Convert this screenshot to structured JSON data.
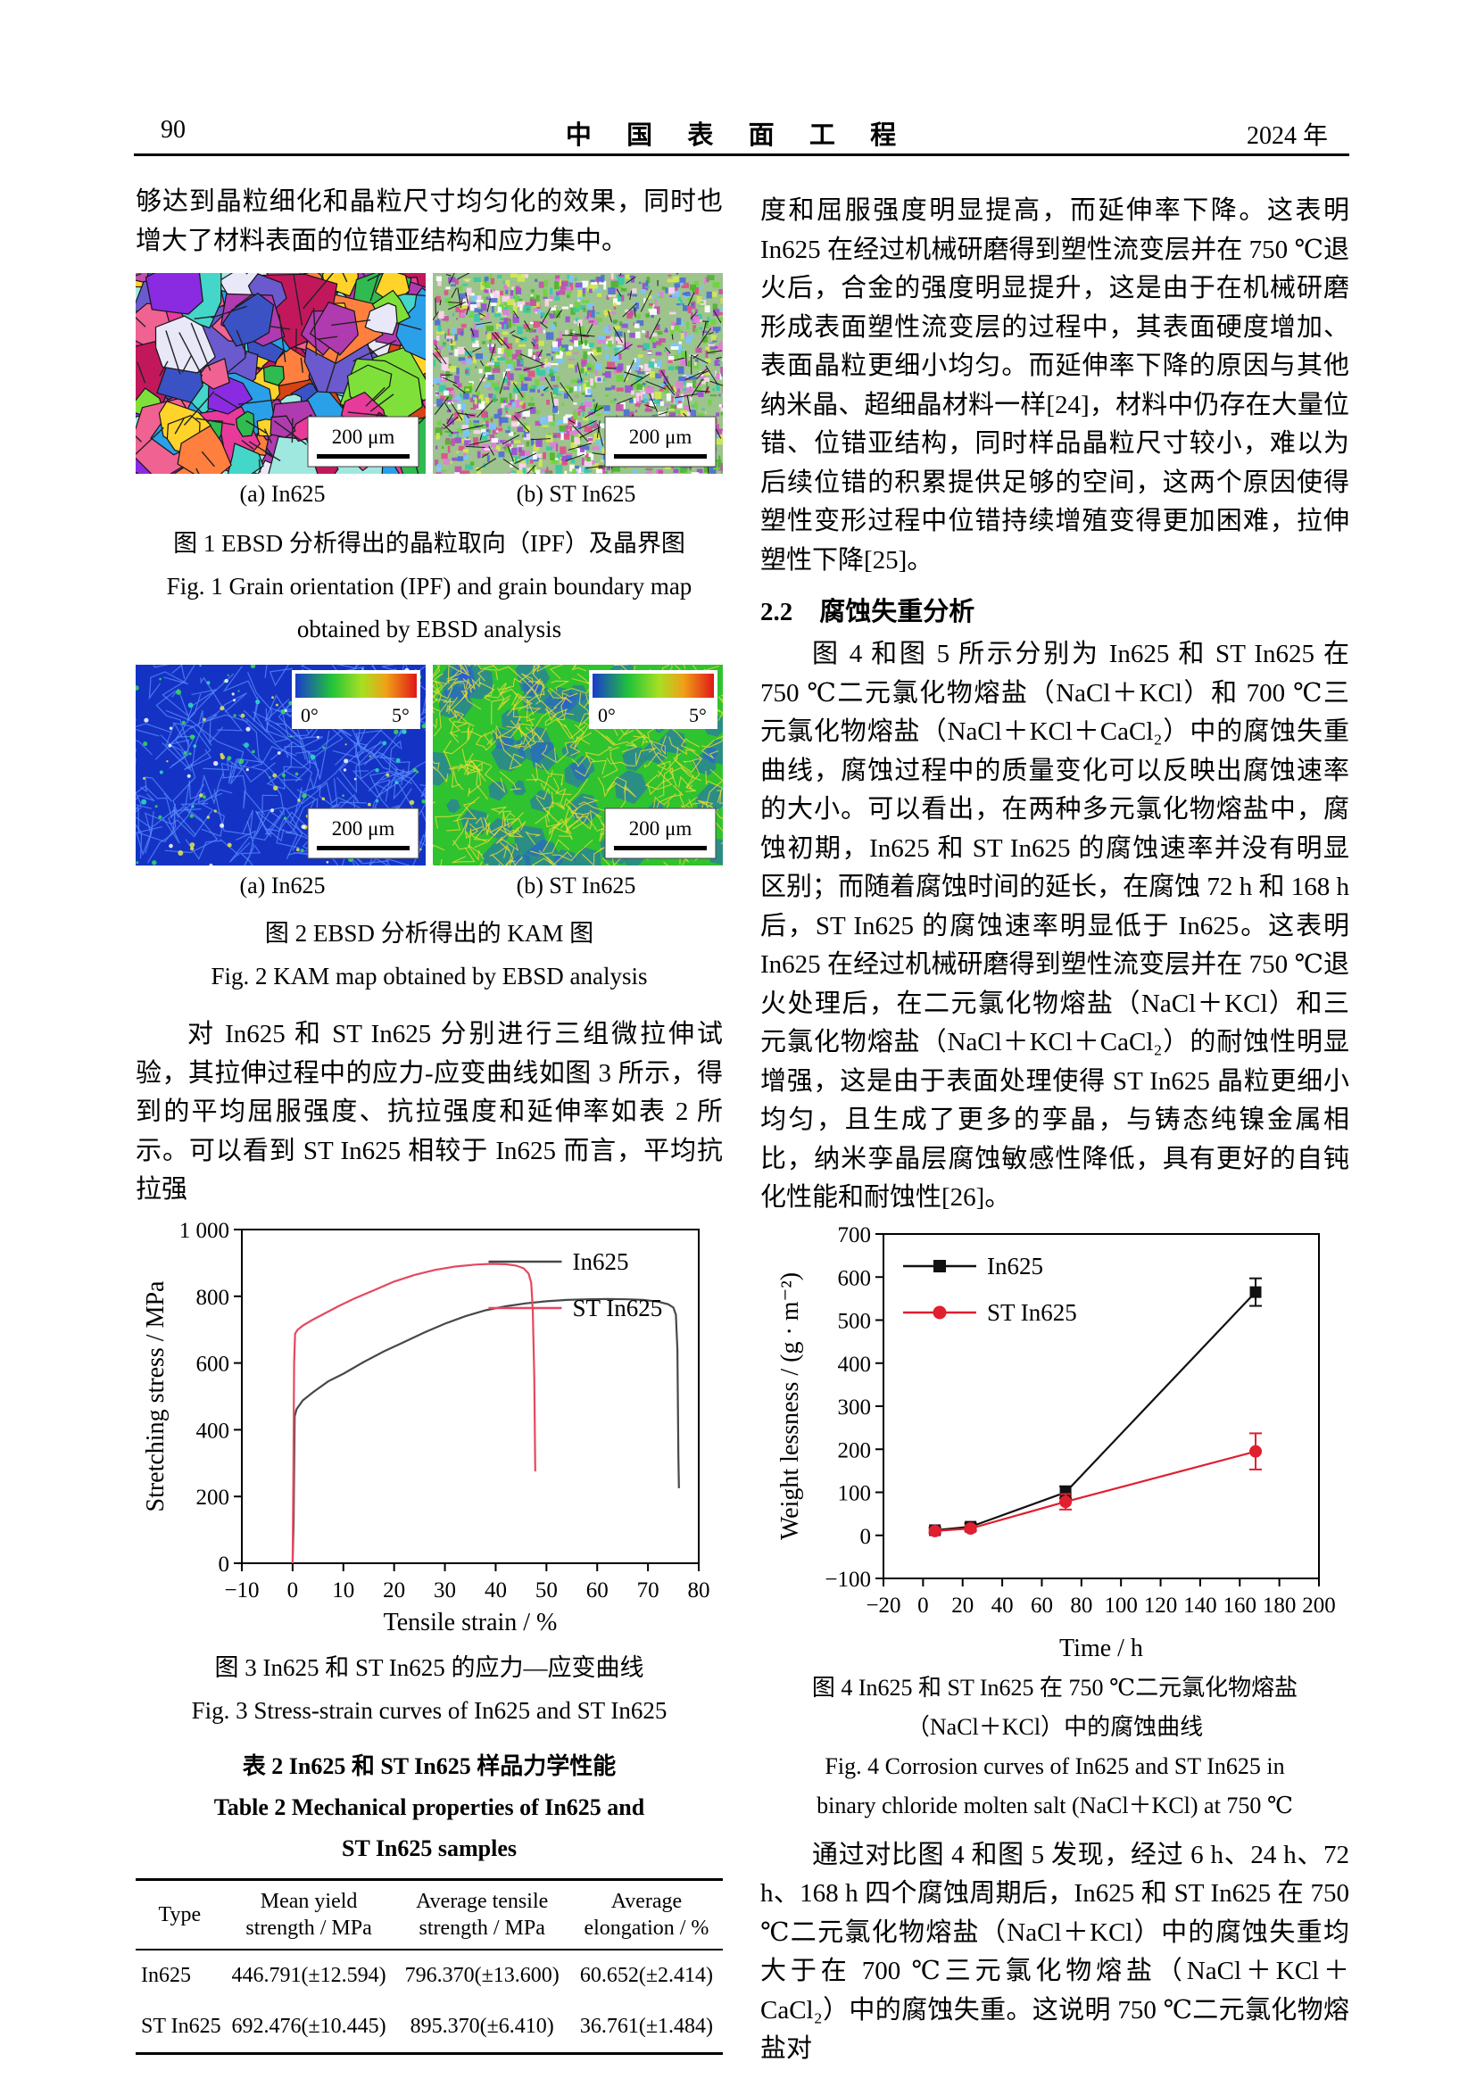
{
  "header": {
    "page_number": "90",
    "journal_title": "中 国 表 面 工 程",
    "year": "2024 年"
  },
  "left_column": {
    "para_intro": "够达到晶粒细化和晶粒尺寸均匀化的效果，同时也增大了材料表面的位错亚结构和应力集中。",
    "figure1": {
      "label_a": "(a) In625",
      "label_b": "(b) ST In625",
      "scale_bar": "200 μm",
      "caption_cn": "图 1  EBSD 分析得出的晶粒取向（IPF）及晶界图",
      "caption_en_line1": "Fig. 1  Grain orientation (IPF) and grain boundary map",
      "caption_en_line2": "obtained by EBSD analysis"
    },
    "figure2": {
      "label_a": "(a) In625",
      "label_b": "(b) ST In625",
      "scale_bar": "200 μm",
      "colorbar_min": "0°",
      "colorbar_max": "5°",
      "caption_cn": "图 2  EBSD 分析得出的 KAM 图",
      "caption_en": "Fig. 2  KAM map obtained by EBSD analysis"
    },
    "para_tensile": "对 In625 和 ST In625 分别进行三组微拉伸试验，其拉伸过程中的应力-应变曲线如图 3 所示，得到的平均屈服强度、抗拉强度和延伸率如表 2 所示。可以看到 ST In625 相较于 In625 而言，平均抗拉强",
    "figure3": {
      "caption_cn": "图 3  In625 和 ST In625 的应力—应变曲线",
      "caption_en": "Fig. 3  Stress-strain curves of In625 and ST In625"
    },
    "table2": {
      "title_cn": "表 2  In625 和 ST In625 样品力学性能",
      "title_en_line1": "Table 2  Mechanical properties of In625 and",
      "title_en_line2": "ST In625 samples",
      "headers": [
        "Type",
        "Mean yield\nstrength / MPa",
        "Average tensile\nstrength / MPa",
        "Average\nelongation / %"
      ],
      "rows": [
        [
          "In625",
          "446.791(±12.594)",
          "796.370(±13.600)",
          "60.652(±2.414)"
        ],
        [
          "ST In625",
          "692.476(±10.445)",
          "895.370(±6.410)",
          "36.761(±1.484)"
        ]
      ]
    }
  },
  "right_column": {
    "para_continuation": "度和屈服强度明显提高，而延伸率下降。这表明 In625 在经过机械研磨得到塑性流变层并在 750 ℃退火后，合金的强度明显提升，这是由于在机械研磨形成表面塑性流变层的过程中，其表面硬度增加、表面晶粒更细小均匀。而延伸率下降的原因与其他纳米晶、超细晶材料一样[24]，材料中仍存在大量位错、位错亚结构，同时样品晶粒尺寸较小，难以为后续位错的积累提供足够的空间，这两个原因使得塑性变形过程中位错持续增殖变得更加困难，拉伸塑性下降[25]。",
    "section_heading": {
      "number": "2.2",
      "title": "腐蚀失重分析"
    },
    "para_corrosion": "图 4 和图 5 所示分别为 In625 和 ST In625 在 750 ℃二元氯化物熔盐（NaCl＋KCl）和 700 ℃三元氯化物熔盐（NaCl＋KCl＋CaCl₂）中的腐蚀失重曲线，腐蚀过程中的质量变化可以反映出腐蚀速率的大小。可以看出，在两种多元氯化物熔盐中，腐蚀初期，In625 和 ST In625 的腐蚀速率并没有明显区别；而随着腐蚀时间的延长，在腐蚀 72 h 和 168 h 后，ST In625 的腐蚀速率明显低于 In625。这表明 In625 在经过机械研磨得到塑性流变层并在 750 ℃退火处理后，在二元氯化物熔盐（NaCl＋KCl）和三元氯化物熔盐（NaCl＋KCl＋CaCl₂）的耐蚀性明显增强，这是由于表面处理使得 ST In625 晶粒更细小均匀，且生成了更多的孪晶，与铸态纯镍金属相比，纳米孪晶层腐蚀敏感性降低，具有更好的自钝化性能和耐蚀性[26]。",
    "figure4": {
      "caption_cn_line1": "图 4  In625 和 ST In625 在 750 ℃二元氯化物熔盐",
      "caption_cn_line2": "（NaCl＋KCl）中的腐蚀曲线",
      "caption_en_line1": "Fig. 4  Corrosion curves of In625 and ST In625 in",
      "caption_en_line2": "binary chloride molten salt (NaCl＋KCl) at 750 ℃"
    },
    "para_compare": "通过对比图 4 和图 5 发现，经过 6 h、24 h、72 h、168 h 四个腐蚀周期后，In625 和 ST In625 在 750 ℃二元氯化物熔盐（NaCl＋KCl）中的腐蚀失重均大于在 700 ℃三元氯化物熔盐（NaCl＋KCl＋CaCl₂）中的腐蚀失重。这说明 750 ℃二元氯化物熔盐对"
  },
  "chart_data": [
    {
      "id": "fig3",
      "type": "line",
      "xlabel": "Tensile strain / %",
      "ylabel": "Stretching stress / MPa",
      "xlim": [
        -10,
        80
      ],
      "ylim": [
        0,
        1000
      ],
      "xticks": [
        -10,
        0,
        10,
        20,
        30,
        40,
        50,
        60,
        70,
        80
      ],
      "xtick_labels": [
        "−10",
        "0",
        "10",
        "20",
        "30",
        "40",
        "50",
        "60",
        "70",
        "80"
      ],
      "yticks": [
        0,
        200,
        400,
        600,
        800,
        1000
      ],
      "ytick_labels": [
        "0",
        "200",
        "400",
        "600",
        "800",
        "1 000"
      ],
      "grid": false,
      "legend_position": "top-right",
      "series": [
        {
          "name": "In625",
          "color": "#444a48",
          "points": [
            [
              0,
              0
            ],
            [
              0.2,
              120
            ],
            [
              0.4,
              440
            ],
            [
              0.8,
              462
            ],
            [
              2,
              488
            ],
            [
              4,
              512
            ],
            [
              7,
              545
            ],
            [
              10,
              568
            ],
            [
              14,
              603
            ],
            [
              18,
              635
            ],
            [
              22,
              663
            ],
            [
              26,
              692
            ],
            [
              30,
              718
            ],
            [
              34,
              740
            ],
            [
              38,
              758
            ],
            [
              42,
              770
            ],
            [
              46,
              779
            ],
            [
              50,
              785
            ],
            [
              54,
              789
            ],
            [
              58,
              791
            ],
            [
              62,
              792
            ],
            [
              66,
              791
            ],
            [
              69,
              789
            ],
            [
              72,
              784
            ],
            [
              74,
              776
            ],
            [
              75,
              766
            ],
            [
              75.5,
              745
            ],
            [
              75.8,
              640
            ],
            [
              76,
              320
            ],
            [
              76.1,
              225
            ]
          ]
        },
        {
          "name": "ST In625",
          "color": "#e5485f",
          "points": [
            [
              0,
              0
            ],
            [
              0.15,
              250
            ],
            [
              0.3,
              600
            ],
            [
              0.5,
              688
            ],
            [
              1,
              700
            ],
            [
              2,
              712
            ],
            [
              4,
              730
            ],
            [
              6,
              746
            ],
            [
              9,
              770
            ],
            [
              12,
              792
            ],
            [
              16,
              818
            ],
            [
              20,
              844
            ],
            [
              24,
              864
            ],
            [
              28,
              879
            ],
            [
              32,
              889
            ],
            [
              36,
              895
            ],
            [
              39,
              897
            ],
            [
              42,
              896
            ],
            [
              44,
              892
            ],
            [
              45.5,
              884
            ],
            [
              46.5,
              868
            ],
            [
              47,
              840
            ],
            [
              47.3,
              760
            ],
            [
              47.6,
              560
            ],
            [
              47.8,
              275
            ]
          ]
        }
      ]
    },
    {
      "id": "fig4",
      "type": "scatter",
      "xlabel": "Time / h",
      "ylabel": "Weight lessness / (g · m⁻²)",
      "xlim": [
        -20,
        200
      ],
      "ylim": [
        -100,
        700
      ],
      "xticks": [
        -20,
        0,
        20,
        40,
        60,
        80,
        100,
        120,
        140,
        160,
        180,
        200
      ],
      "xtick_labels": [
        "−20",
        "0",
        "20",
        "40",
        "60",
        "80",
        "100",
        "120",
        "140",
        "160",
        "180",
        "200"
      ],
      "yticks": [
        -100,
        0,
        100,
        200,
        300,
        400,
        500,
        600,
        700
      ],
      "ytick_labels": [
        "−100",
        "0",
        "100",
        "200",
        "300",
        "400",
        "500",
        "600",
        "700"
      ],
      "grid": false,
      "legend_position": "top-left",
      "series": [
        {
          "name": "In625",
          "color": "#111111",
          "marker": "square",
          "x": [
            6,
            24,
            72,
            168
          ],
          "y": [
            12,
            20,
            100,
            565
          ],
          "yerr": [
            6,
            8,
            14,
            32
          ]
        },
        {
          "name": "ST In625",
          "color": "#e01f2f",
          "marker": "circle",
          "x": [
            6,
            24,
            72,
            168
          ],
          "y": [
            10,
            16,
            78,
            195
          ],
          "yerr": [
            5,
            6,
            18,
            42
          ]
        }
      ]
    }
  ]
}
